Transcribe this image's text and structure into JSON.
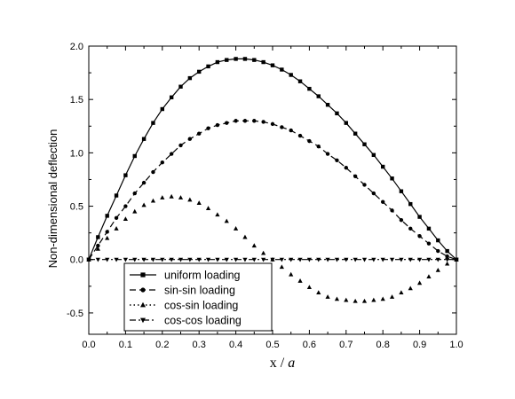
{
  "chart_data": {
    "type": "line",
    "xlabel_main": "x / ",
    "xlabel_var": "a",
    "ylabel": "Non-dimensional deflection",
    "xlim": [
      0.0,
      1.0
    ],
    "ylim": [
      -0.7,
      2.0
    ],
    "x_ticks": [
      "0.0",
      "0.1",
      "0.2",
      "0.3",
      "0.4",
      "0.5",
      "0.6",
      "0.7",
      "0.8",
      "0.9",
      "1.0"
    ],
    "y_ticks": [
      "-0.5",
      "0.0",
      "0.5",
      "1.0",
      "1.5",
      "2.0"
    ],
    "x_tick_values": [
      0.0,
      0.1,
      0.2,
      0.3,
      0.4,
      0.5,
      0.6,
      0.7,
      0.8,
      0.9,
      1.0
    ],
    "y_tick_values": [
      -0.5,
      0.0,
      0.5,
      1.0,
      1.5,
      2.0
    ],
    "grid": false,
    "legend_position": "bottom-left",
    "series": [
      {
        "name": "uniform loading",
        "line": "solid",
        "marker": "square",
        "x": [
          0.0,
          0.025,
          0.05,
          0.075,
          0.1,
          0.125,
          0.15,
          0.175,
          0.2,
          0.225,
          0.25,
          0.275,
          0.3,
          0.325,
          0.35,
          0.375,
          0.4,
          0.425,
          0.45,
          0.475,
          0.5,
          0.525,
          0.55,
          0.575,
          0.6,
          0.625,
          0.65,
          0.675,
          0.7,
          0.725,
          0.75,
          0.775,
          0.8,
          0.825,
          0.85,
          0.875,
          0.9,
          0.925,
          0.95,
          0.975,
          1.0
        ],
        "values": [
          0.0,
          0.21,
          0.41,
          0.6,
          0.79,
          0.97,
          1.13,
          1.28,
          1.41,
          1.52,
          1.62,
          1.7,
          1.76,
          1.81,
          1.85,
          1.87,
          1.88,
          1.88,
          1.87,
          1.85,
          1.82,
          1.78,
          1.73,
          1.67,
          1.6,
          1.53,
          1.45,
          1.37,
          1.28,
          1.18,
          1.08,
          0.98,
          0.87,
          0.76,
          0.64,
          0.52,
          0.4,
          0.29,
          0.18,
          0.08,
          0.0
        ]
      },
      {
        "name": "sin-sin loading",
        "line": "dashed",
        "marker": "circle",
        "x": [
          0.0,
          0.025,
          0.05,
          0.075,
          0.1,
          0.125,
          0.15,
          0.175,
          0.2,
          0.225,
          0.25,
          0.275,
          0.3,
          0.325,
          0.35,
          0.375,
          0.4,
          0.425,
          0.45,
          0.475,
          0.5,
          0.525,
          0.55,
          0.575,
          0.6,
          0.625,
          0.65,
          0.675,
          0.7,
          0.725,
          0.75,
          0.775,
          0.8,
          0.825,
          0.85,
          0.875,
          0.9,
          0.925,
          0.95,
          0.975,
          1.0
        ],
        "values": [
          0.0,
          0.13,
          0.26,
          0.39,
          0.5,
          0.62,
          0.72,
          0.82,
          0.91,
          0.99,
          1.07,
          1.13,
          1.18,
          1.23,
          1.26,
          1.28,
          1.3,
          1.3,
          1.3,
          1.29,
          1.27,
          1.24,
          1.21,
          1.16,
          1.11,
          1.06,
          0.99,
          0.93,
          0.86,
          0.78,
          0.7,
          0.62,
          0.54,
          0.46,
          0.37,
          0.29,
          0.22,
          0.15,
          0.08,
          0.03,
          0.0
        ]
      },
      {
        "name": "cos-sin loading",
        "line": "dotted",
        "marker": "triangle-up",
        "x": [
          0.0,
          0.025,
          0.05,
          0.075,
          0.1,
          0.125,
          0.15,
          0.175,
          0.2,
          0.225,
          0.25,
          0.275,
          0.3,
          0.325,
          0.35,
          0.375,
          0.4,
          0.425,
          0.45,
          0.475,
          0.5,
          0.525,
          0.55,
          0.575,
          0.6,
          0.625,
          0.65,
          0.675,
          0.7,
          0.725,
          0.75,
          0.775,
          0.8,
          0.825,
          0.85,
          0.875,
          0.9,
          0.925,
          0.95,
          0.975,
          1.0
        ],
        "values": [
          0.0,
          0.1,
          0.2,
          0.29,
          0.38,
          0.45,
          0.51,
          0.55,
          0.58,
          0.59,
          0.58,
          0.56,
          0.53,
          0.48,
          0.42,
          0.36,
          0.29,
          0.21,
          0.13,
          0.06,
          0.0,
          -0.07,
          -0.14,
          -0.2,
          -0.26,
          -0.31,
          -0.35,
          -0.37,
          -0.38,
          -0.39,
          -0.39,
          -0.38,
          -0.37,
          -0.35,
          -0.31,
          -0.27,
          -0.22,
          -0.16,
          -0.1,
          -0.04,
          0.0
        ]
      },
      {
        "name": "cos-cos loading",
        "line": "dash-dot",
        "marker": "triangle-down",
        "x": [
          0.0,
          0.025,
          0.05,
          0.075,
          0.1,
          0.125,
          0.15,
          0.175,
          0.2,
          0.225,
          0.25,
          0.275,
          0.3,
          0.325,
          0.35,
          0.375,
          0.4,
          0.425,
          0.45,
          0.475,
          0.5,
          0.525,
          0.55,
          0.575,
          0.6,
          0.625,
          0.65,
          0.675,
          0.7,
          0.725,
          0.75,
          0.775,
          0.8,
          0.825,
          0.85,
          0.875,
          0.9,
          0.925,
          0.95,
          0.975,
          1.0
        ],
        "values": [
          0,
          0,
          0,
          0,
          0,
          0,
          0,
          0,
          0,
          0,
          0,
          0,
          0,
          0,
          0,
          0,
          0,
          0,
          0,
          0,
          0,
          0,
          0,
          0,
          0,
          0,
          0,
          0,
          0,
          0,
          0,
          0,
          0,
          0,
          0,
          0,
          0,
          0,
          0,
          0,
          0
        ]
      }
    ]
  }
}
